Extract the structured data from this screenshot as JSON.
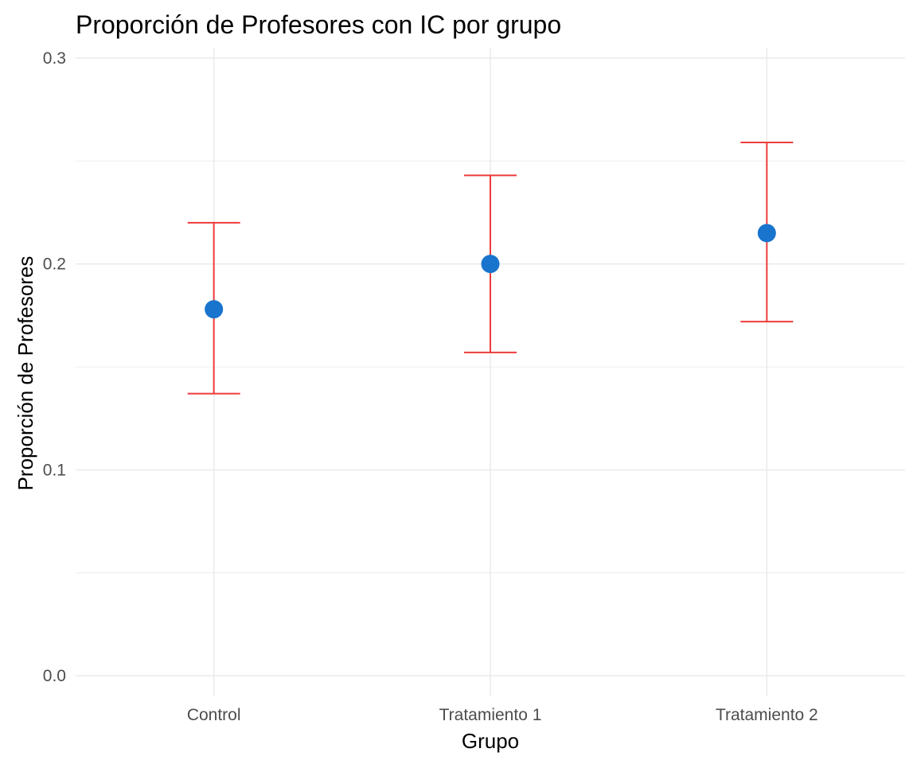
{
  "chart_data": {
    "type": "scatter",
    "title": "Proporción de Profesores con IC por grupo",
    "xlabel": "Grupo",
    "ylabel": "Proporción de Profesores",
    "categories": [
      "Control",
      "Tratamiento 1",
      "Tratamiento 2"
    ],
    "values": [
      0.178,
      0.2,
      0.215
    ],
    "ci_lower": [
      0.137,
      0.157,
      0.172
    ],
    "ci_upper": [
      0.22,
      0.243,
      0.259
    ],
    "ylim": [
      -0.01,
      0.305
    ],
    "yticks": [
      0.0,
      0.1,
      0.2,
      0.3
    ],
    "ytick_labels": [
      "0.0",
      "0.1",
      "0.2",
      "0.3"
    ],
    "grid": true,
    "legend": "none",
    "colors": {
      "point": "#1874CD",
      "errorbar": "#EE3B3B",
      "grid": "#EBEBEB"
    }
  }
}
